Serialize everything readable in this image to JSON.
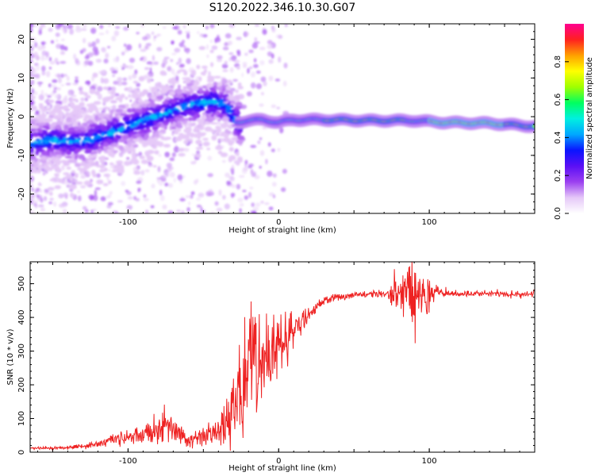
{
  "title": "S120.2022.346.10.30.G07",
  "chart_data": [
    {
      "type": "heatmap",
      "title": "S120.2022.346.10.30.G07",
      "xlabel": "Height of straight line (km)",
      "ylabel": "Frequency (Hz)",
      "xlim": [
        -165,
        170
      ],
      "ylim": [
        -25,
        24
      ],
      "x_ticks": [
        "-100",
        "0",
        "100"
      ],
      "y_ticks": [
        "-20",
        "-10",
        "0",
        "10",
        "20"
      ],
      "ridge": {
        "x": [
          -165,
          -150,
          -130,
          -110,
          -90,
          -75,
          -60,
          -45,
          -35,
          -28,
          -20,
          -10,
          0,
          10,
          30,
          60,
          90,
          110,
          140,
          170
        ],
        "frequency": [
          -7,
          -6,
          -6.5,
          -4,
          -1,
          1,
          3,
          4,
          3,
          -1.5,
          -1,
          -0.8,
          -1.5,
          -0.8,
          -0.8,
          -1,
          -1,
          -1.5,
          -1.7,
          -2.5
        ]
      },
      "colorbar": {
        "label": "Normalized spectral amplitude",
        "range": [
          0,
          1
        ],
        "ticks": [
          "0.0",
          "0.2",
          "0.4",
          "0.6",
          "0.8"
        ],
        "colors": [
          "#ffffff",
          "#e5c8f8",
          "#9b3ff0",
          "#5a0ff5",
          "#0a14ff",
          "#00a8ff",
          "#00f0e0",
          "#00ff60",
          "#a0ff00",
          "#ffff00",
          "#ffa000",
          "#ff2020",
          "#ff0090"
        ]
      },
      "grid": false
    },
    {
      "type": "line",
      "xlabel": "Height of straight line (km)",
      "ylabel": "SNR (10 * v/v)",
      "xlim": [
        -165,
        170
      ],
      "ylim": [
        0,
        565
      ],
      "x_ticks": [
        "-100",
        "0",
        "100"
      ],
      "y_ticks": [
        "0",
        "100",
        "200",
        "300",
        "400",
        "500"
      ],
      "series": [
        {
          "color": "#ee2222",
          "x": [
            -165,
            -150,
            -140,
            -130,
            -120,
            -110,
            -100,
            -90,
            -80,
            -75,
            -70,
            -60,
            -50,
            -40,
            -35,
            -30,
            -25,
            -20,
            -15,
            -10,
            -5,
            0,
            5,
            10,
            15,
            20,
            25,
            30,
            40,
            50,
            60,
            70,
            80,
            85,
            90,
            95,
            100,
            105,
            110,
            120,
            140,
            160,
            170
          ],
          "y": [
            12,
            12,
            15,
            18,
            25,
            38,
            45,
            50,
            70,
            80,
            65,
            35,
            45,
            60,
            90,
            150,
            200,
            240,
            270,
            280,
            300,
            320,
            340,
            360,
            380,
            410,
            430,
            450,
            460,
            468,
            470,
            472,
            480,
            470,
            475,
            480,
            470,
            475,
            472,
            470,
            470,
            468,
            470
          ],
          "noise": [
            3,
            4,
            5,
            6,
            10,
            15,
            18,
            22,
            35,
            45,
            30,
            20,
            25,
            35,
            60,
            110,
            150,
            150,
            150,
            130,
            110,
            90,
            70,
            50,
            30,
            20,
            15,
            12,
            10,
            8,
            8,
            10,
            50,
            75,
            110,
            60,
            50,
            15,
            10,
            8,
            8,
            8,
            8
          ]
        }
      ],
      "grid": false
    }
  ]
}
